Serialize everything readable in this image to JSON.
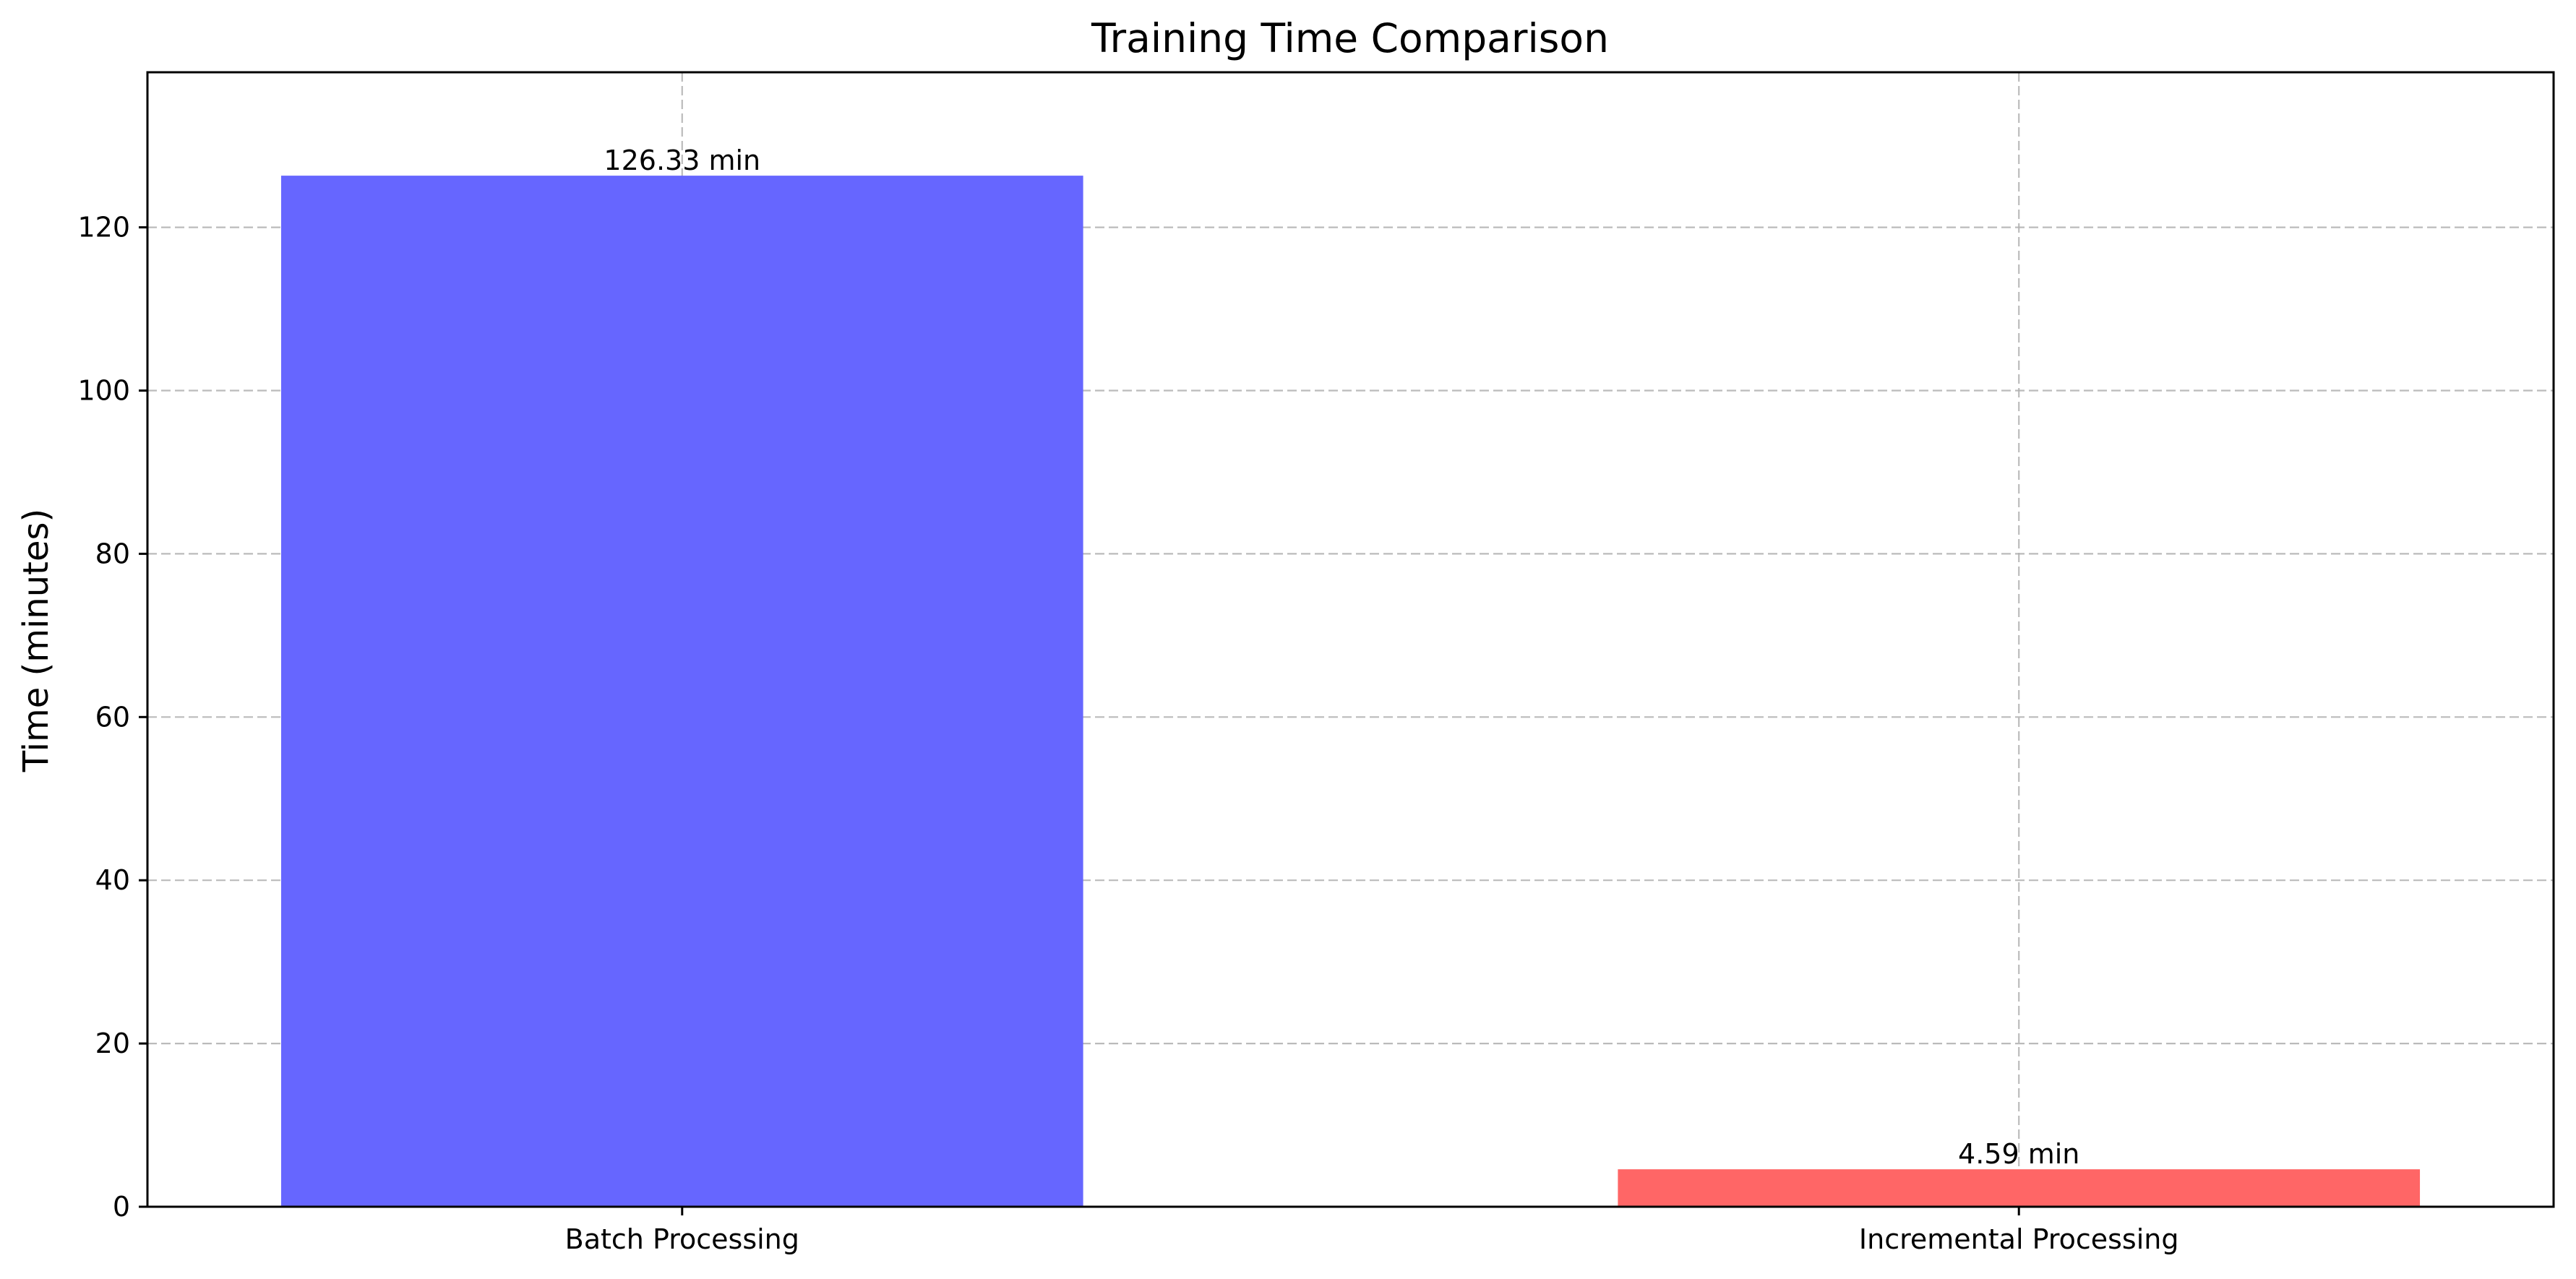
{
  "chart_data": {
    "type": "bar",
    "title": "Training Time Comparison",
    "xlabel": "",
    "ylabel": "Time (minutes)",
    "categories": [
      "Batch Processing",
      "Incremental Processing"
    ],
    "values": [
      126.33,
      4.59
    ],
    "data_labels": [
      "126.33 min",
      "4.59 min"
    ],
    "colors": [
      "#6666ff",
      "#ff6666"
    ],
    "ylim": [
      0,
      139
    ],
    "yticks": [
      0,
      20,
      40,
      60,
      80,
      100,
      120
    ],
    "grid": true,
    "legend": "none"
  }
}
